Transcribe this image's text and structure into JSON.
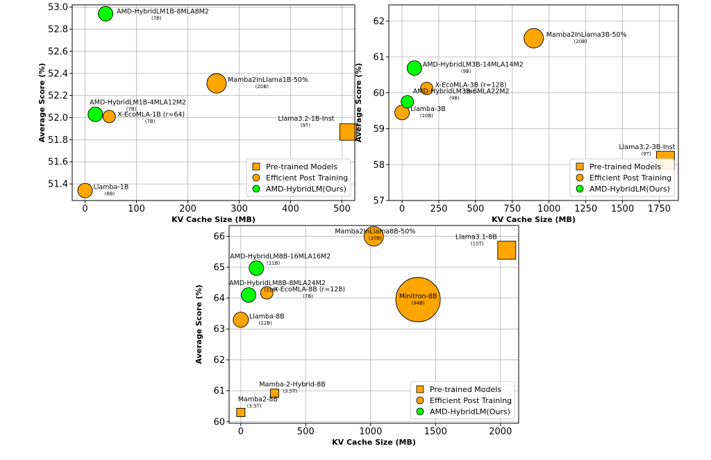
{
  "colors": {
    "pretrained": "#ffa500",
    "efficient": "#ffa500",
    "hybrid": "#00ff00",
    "edge": "#000000",
    "grid": "#b0b0b0"
  },
  "chart_data": [
    {
      "id": "p1",
      "type": "scatter",
      "xlabel": "KV Cache Size (MB)",
      "ylabel": "Average Score (%)",
      "xlim": [
        -25,
        525
      ],
      "ylim": [
        51.25,
        53.02
      ],
      "xticks": [
        0,
        100,
        200,
        300,
        400,
        500
      ],
      "xtick_labels": [
        "0",
        "100",
        "200",
        "300",
        "400",
        "500"
      ],
      "yticks": [
        51.4,
        51.6,
        51.8,
        52.0,
        52.2,
        52.4,
        52.6,
        52.8,
        53.0
      ],
      "ytick_labels": [
        "51.4",
        "51.6",
        "51.8",
        "52.0",
        "52.2",
        "52.4",
        "52.6",
        "52.8",
        "53.0"
      ],
      "grid": true,
      "legend": {
        "position": "lower-right",
        "entries": [
          "Pre-trained Models",
          "Efficient Post Training",
          "AMD-HybridLM(Ours)"
        ]
      },
      "points": [
        {
          "name": "AMD-HybridLM1B-8MLA8M2",
          "sub": "(7B)",
          "x": 40,
          "y": 52.94,
          "kind": "hybrid",
          "size": 10.5
        },
        {
          "name": "Mamba2InLlama1B-50%",
          "sub": "(20B)",
          "x": 256,
          "y": 52.31,
          "kind": "efficient",
          "size": 14
        },
        {
          "name": "AMD-HybridLM1B-4MLA12M2",
          "sub": "(7B)",
          "x": 20,
          "y": 52.03,
          "kind": "hybrid",
          "size": 10.5
        },
        {
          "name": "X-EcoMLA-1B (r=64)",
          "sub": "(7B)",
          "x": 47,
          "y": 52.01,
          "kind": "efficient",
          "size": 9
        },
        {
          "name": "Llama3.2-1B-Inst",
          "sub": "(9T)",
          "x": 512,
          "y": 51.87,
          "kind": "pretrained",
          "size": 12
        },
        {
          "name": "Llamba-1B",
          "sub": "(8B)",
          "x": 0,
          "y": 51.34,
          "kind": "efficient",
          "size": 10.5
        }
      ]
    },
    {
      "id": "p2",
      "type": "scatter",
      "xlabel": "KV Cache Size (MB)",
      "ylabel": "Average Score (%)",
      "xlim": [
        -90,
        1880
      ],
      "ylim": [
        57.0,
        62.45
      ],
      "xticks": [
        0,
        250,
        500,
        750,
        1000,
        1250,
        1500,
        1750
      ],
      "xtick_labels": [
        "0",
        "250",
        "500",
        "750",
        "1000",
        "1250",
        "1500",
        "1750"
      ],
      "yticks": [
        57,
        58,
        59,
        60,
        61,
        62
      ],
      "ytick_labels": [
        "57",
        "58",
        "59",
        "60",
        "61",
        "62"
      ],
      "grid": true,
      "legend": {
        "position": "lower-right",
        "entries": [
          "Pre-trained Models",
          "Efficient Post Training",
          "AMD-HybridLM(Ours)"
        ]
      },
      "points": [
        {
          "name": "Mamba2InLlama3B-50%",
          "sub": "(20B)",
          "x": 896,
          "y": 61.52,
          "kind": "efficient",
          "size": 14
        },
        {
          "name": "AMD-HybridLM3B-14MLA14M2",
          "sub": "(9B)",
          "x": 84,
          "y": 60.69,
          "kind": "hybrid",
          "size": 10.5
        },
        {
          "name": "X-EcoMLA-3B (r=128)",
          "sub": "(7B)",
          "x": 168,
          "y": 60.12,
          "kind": "efficient",
          "size": 9
        },
        {
          "name": "AMD-HybridLM3B-6MLA22M2",
          "sub": "(9B)",
          "x": 36,
          "y": 59.75,
          "kind": "hybrid",
          "size": 9
        },
        {
          "name": "Llamba-3B",
          "sub": "(10B)",
          "x": 0,
          "y": 59.45,
          "kind": "efficient",
          "size": 10.5
        },
        {
          "name": "Llama3.2-3B-Inst",
          "sub": "(9T)",
          "x": 1792,
          "y": 58.12,
          "kind": "pretrained",
          "size": 13
        }
      ]
    },
    {
      "id": "p3",
      "type": "scatter",
      "xlabel": "KV Cache Size (MB)",
      "ylabel": "Average Score (%)",
      "xlim": [
        -90,
        2140
      ],
      "ylim": [
        59.95,
        66.35
      ],
      "xticks": [
        0,
        500,
        1000,
        1500,
        2000
      ],
      "xtick_labels": [
        "0",
        "500",
        "1000",
        "1500",
        "2000"
      ],
      "yticks": [
        60,
        61,
        62,
        63,
        64,
        65,
        66
      ],
      "ytick_labels": [
        "60",
        "61",
        "62",
        "63",
        "64",
        "65",
        "66"
      ],
      "grid": true,
      "legend": {
        "position": "lower-right",
        "entries": [
          "Pre-trained Models",
          "Efficient Post Training",
          "AMD-HybridLM(Ours)"
        ]
      },
      "points": [
        {
          "name": "Mamba2InLlama8B-50%",
          "sub": "(20B)",
          "x": 1024,
          "y": 66.0,
          "kind": "efficient",
          "size": 14
        },
        {
          "name": "Llama3.1-8B",
          "sub": "(15T)",
          "x": 2048,
          "y": 65.55,
          "kind": "pretrained",
          "size": 13
        },
        {
          "name": "AMD-HybridLM8B-16MLA16M2",
          "sub": "(11B)",
          "x": 120,
          "y": 64.97,
          "kind": "hybrid",
          "size": 10.5
        },
        {
          "name": "AMD-HybridLM8B-8MLA24M2",
          "sub": "(11B)",
          "x": 60,
          "y": 64.1,
          "kind": "hybrid",
          "size": 10.5
        },
        {
          "name": "X-EcoMLA-8B (r=128)",
          "sub": "(7B)",
          "x": 200,
          "y": 64.17,
          "kind": "efficient",
          "size": 9
        },
        {
          "name": "Minitron-8B",
          "sub": "(94B)",
          "x": 1365,
          "y": 63.95,
          "kind": "efficient",
          "size": 32
        },
        {
          "name": "Llamba-8B",
          "sub": "(12B)",
          "x": 0,
          "y": 63.3,
          "kind": "efficient",
          "size": 11
        },
        {
          "name": "Mamba-2-Hybrid-8B",
          "sub": "(3.5T)",
          "x": 260,
          "y": 60.92,
          "kind": "pretrained",
          "size": 6
        },
        {
          "name": "Mamba2-8B",
          "sub": "(3.5T)",
          "x": 0,
          "y": 60.3,
          "kind": "pretrained",
          "size": 6
        }
      ]
    }
  ]
}
